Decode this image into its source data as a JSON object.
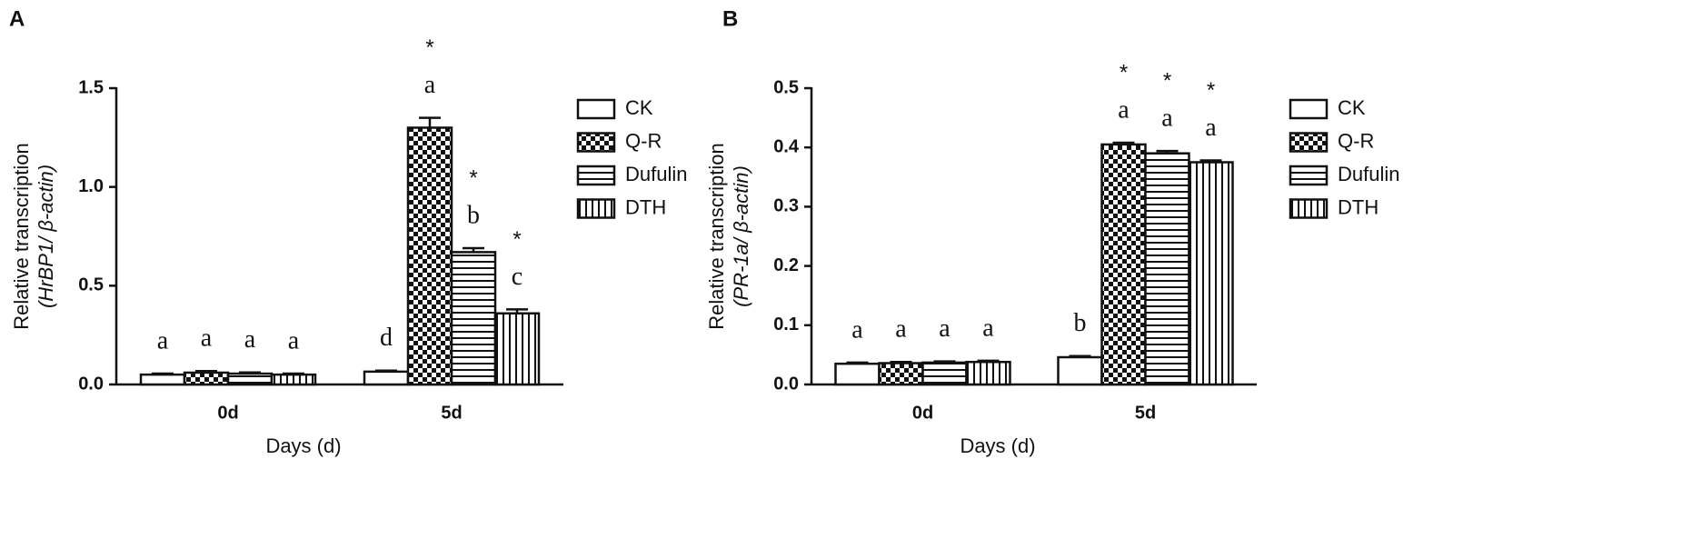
{
  "chart_data": [
    {
      "type": "bar",
      "panel": "A",
      "ylabel": [
        "Relative transcription",
        "(HrBP1/ β-actin)"
      ],
      "xlabel": "Days (d)",
      "categories": [
        "0d",
        "5d"
      ],
      "ylim": [
        0,
        1.5
      ],
      "yticks": [
        {
          "value": 0,
          "label": "0.0"
        },
        0.5,
        {
          "value": 1,
          "label": "1.0"
        },
        1.5
      ],
      "series": [
        {
          "name": "CK",
          "pattern": "none",
          "values": [
            0.05,
            0.065
          ],
          "errors": [
            0.005,
            0.005
          ],
          "letters": [
            "a",
            "d"
          ],
          "stars": [
            null,
            null
          ]
        },
        {
          "name": "Q-R",
          "pattern": "checker",
          "values": [
            0.06,
            1.3
          ],
          "errors": [
            0.008,
            0.05
          ],
          "letters": [
            "a",
            "a"
          ],
          "stars": [
            null,
            "*"
          ]
        },
        {
          "name": "Dufulin",
          "pattern": "hlines",
          "values": [
            0.055,
            0.67
          ],
          "errors": [
            0.006,
            0.02
          ],
          "letters": [
            "a",
            "b"
          ],
          "stars": [
            null,
            "*"
          ]
        },
        {
          "name": "DTH",
          "pattern": "vlines",
          "values": [
            0.05,
            0.36
          ],
          "errors": [
            0.005,
            0.02
          ],
          "letters": [
            "a",
            "c"
          ],
          "stars": [
            null,
            "*"
          ]
        }
      ]
    },
    {
      "type": "bar",
      "panel": "B",
      "ylabel": [
        "Relative transcription",
        "(PR-1a/ β-actin)"
      ],
      "xlabel": "Days (d)",
      "categories": [
        "0d",
        "5d"
      ],
      "ylim": [
        0,
        0.5
      ],
      "yticks": [
        {
          "value": 0,
          "label": "0.0"
        },
        0.1,
        0.2,
        0.3,
        0.4,
        0.5
      ],
      "series": [
        {
          "name": "CK",
          "pattern": "none",
          "values": [
            0.035,
            0.046
          ],
          "errors": [
            0.002,
            0.002
          ],
          "letters": [
            "a",
            "b"
          ],
          "stars": [
            null,
            null
          ]
        },
        {
          "name": "Q-R",
          "pattern": "checker",
          "values": [
            0.036,
            0.405
          ],
          "errors": [
            0.002,
            0.003
          ],
          "letters": [
            "a",
            "a"
          ],
          "stars": [
            null,
            "*"
          ]
        },
        {
          "name": "Dufulin",
          "pattern": "hlines",
          "values": [
            0.037,
            0.39
          ],
          "errors": [
            0.002,
            0.004
          ],
          "letters": [
            "a",
            "a"
          ],
          "stars": [
            null,
            "*"
          ]
        },
        {
          "name": "DTH",
          "pattern": "vlines",
          "values": [
            0.038,
            0.375
          ],
          "errors": [
            0.002,
            0.003
          ],
          "letters": [
            "a",
            "a"
          ],
          "stars": [
            null,
            "*"
          ]
        }
      ]
    }
  ]
}
